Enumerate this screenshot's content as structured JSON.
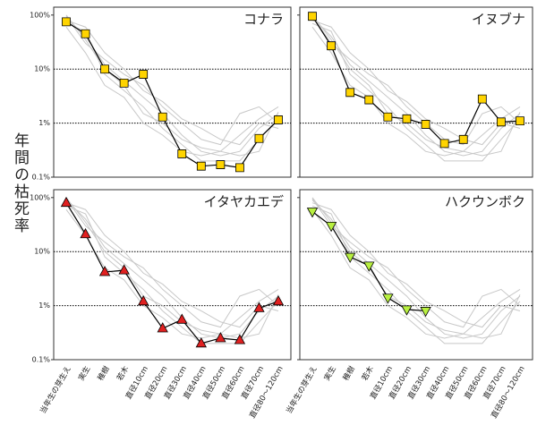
{
  "chart_data": {
    "type": "line",
    "ylabel": "年間の枯死率",
    "log_scale": true,
    "grid": true,
    "categories": [
      "当年生の芽生え",
      "実生",
      "稚樹",
      "若木",
      "直径10cm",
      "直径20cm",
      "直径30cm",
      "直径40cm",
      "直径50cm",
      "直径60cm",
      "直径70cm",
      "直径80～120cm"
    ],
    "ylim": [
      0.1,
      140
    ],
    "yticks": [
      {
        "value": 0.1,
        "label": "0.1%"
      },
      {
        "value": 1,
        "label": "1%"
      },
      {
        "value": 10,
        "label": "10%"
      },
      {
        "value": 100,
        "label": "100%"
      }
    ],
    "background_color": "#c8c8c8",
    "background_series": [
      [
        90,
        40,
        12,
        6,
        3,
        1.5,
        0.6,
        0.3,
        0.25,
        0.3,
        0.8,
        1.5
      ],
      [
        70,
        50,
        8,
        4,
        2,
        0.8,
        0.4,
        0.2,
        0.2,
        0.2,
        0.5,
        1.2
      ],
      [
        95,
        30,
        15,
        8,
        5,
        2,
        1,
        0.5,
        0.4,
        1.5,
        2,
        1
      ],
      [
        60,
        20,
        5,
        3,
        1,
        0.6,
        0.3,
        0.25,
        0.3,
        0.6,
        1.2,
        2
      ],
      [
        80,
        60,
        20,
        10,
        4,
        2.5,
        1.2,
        0.8,
        0.5,
        0.4,
        1,
        0.8
      ],
      [
        100,
        35,
        10,
        5,
        1.5,
        1,
        0.5,
        0.35,
        0.3,
        0.25,
        0.3,
        1.6
      ]
    ],
    "panels": [
      {
        "title": "コナラ",
        "series": [
          {
            "color": "#ffd400",
            "marker": "square",
            "values": [
              75,
              45,
              10,
              5.5,
              8,
              1.3,
              0.27,
              0.16,
              0.17,
              0.15,
              0.52,
              1.15
            ]
          }
        ]
      },
      {
        "title": "イヌブナ",
        "series": [
          {
            "color": "#ffd400",
            "marker": "square",
            "values": [
              95,
              27,
              3.7,
              2.7,
              1.3,
              1.2,
              0.95,
              0.42,
              0.5,
              2.8,
              1.05,
              1.1
            ]
          }
        ]
      },
      {
        "title": "イタヤカエデ",
        "series": [
          {
            "color": "#e02020",
            "marker": "triangle-up",
            "values": [
              80,
              21,
              4.2,
              4.5,
              1.2,
              0.38,
              0.55,
              0.2,
              0.25,
              0.23,
              0.9,
              1.2
            ]
          }
        ]
      },
      {
        "title": "ハクウンボク",
        "series": [
          {
            "color": "#b8f040",
            "marker": "triangle-down",
            "values": [
              55,
              30,
              8,
              5.5,
              1.4,
              0.85,
              0.8,
              null,
              null,
              null,
              null,
              null
            ]
          }
        ]
      }
    ]
  }
}
